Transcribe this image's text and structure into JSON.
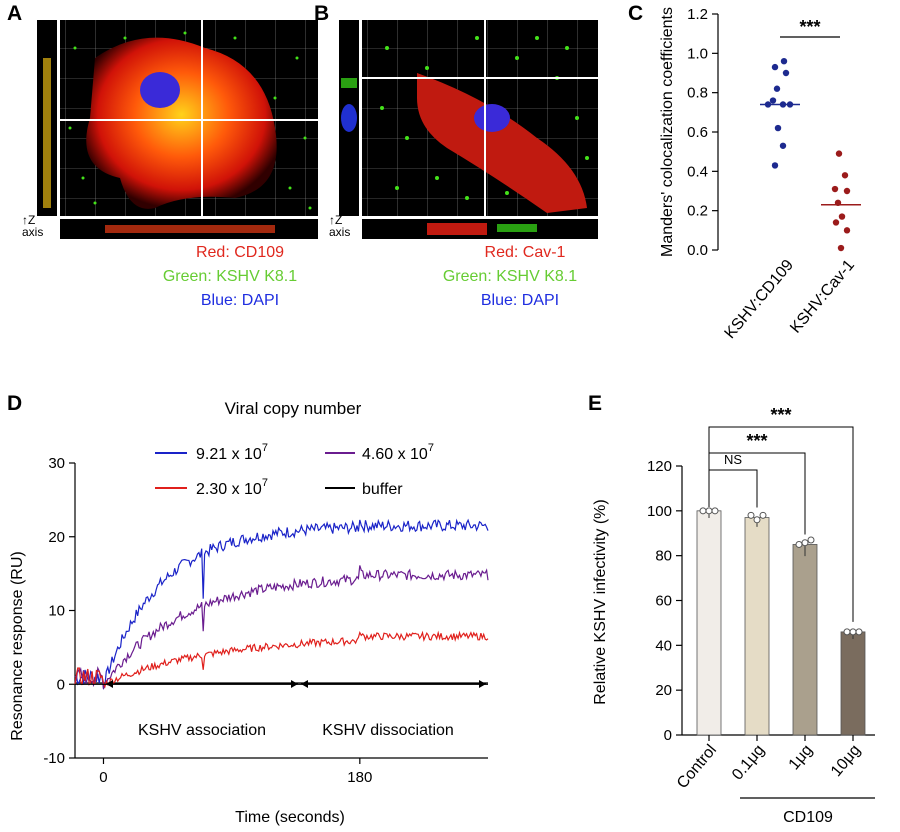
{
  "panels": {
    "A": {
      "letter": "A",
      "axis_symbol": "Z",
      "axis_word": "axis",
      "legend": [
        "Red: CD109",
        "Green: KSHV K8.1",
        "Blue: DAPI"
      ]
    },
    "B": {
      "letter": "B",
      "axis_symbol": "Z",
      "axis_word": "axis",
      "legend": [
        "Red: Cav-1",
        "Green: KSHV K8.1",
        "Blue: DAPI"
      ]
    },
    "C": {
      "letter": "C"
    },
    "D": {
      "letter": "D"
    },
    "E": {
      "letter": "E"
    }
  },
  "colors": {
    "red_text": "#e0281e",
    "green_text": "#66cc33",
    "blue_text": "#1f2ee0",
    "navy_dots": "#1d2a8f",
    "darkred_dots": "#9b1b1b",
    "series_blue": "#1a23c8",
    "series_purple": "#6a1c8f",
    "series_red": "#e0201c",
    "series_black": "#000000"
  },
  "chart_data": [
    {
      "id": "C",
      "type": "scatter",
      "ylabel": "Manders' colocalization coefficients",
      "ylim": [
        0,
        1.2
      ],
      "yticks": [
        "0.0",
        "0.2",
        "0.4",
        "0.6",
        "0.8",
        "1.0",
        "1.2"
      ],
      "categories": [
        "KSHV:CD109",
        "KSHV:Cav-1"
      ],
      "series": [
        {
          "name": "KSHV:CD109",
          "values": [
            0.96,
            0.93,
            0.9,
            0.82,
            0.76,
            0.74,
            0.74,
            0.74,
            0.62,
            0.53,
            0.43
          ],
          "median": 0.74
        },
        {
          "name": "KSHV:Cav-1",
          "values": [
            0.49,
            0.38,
            0.31,
            0.3,
            0.24,
            0.17,
            0.14,
            0.1,
            0.01
          ],
          "median": 0.23
        }
      ],
      "significance": "***"
    },
    {
      "id": "D",
      "type": "line",
      "title": "Viral copy number",
      "xlabel": "Time (seconds)",
      "ylabel": "Resonance response (RU)",
      "xlim": [
        -20,
        270
      ],
      "ylim": [
        -10,
        30
      ],
      "xticks": [
        "0",
        "180"
      ],
      "xtick_values": [
        0,
        180
      ],
      "yticks": [
        "-10",
        "0",
        "10",
        "20",
        "30"
      ],
      "ytick_values": [
        -10,
        0,
        10,
        20,
        30
      ],
      "legend": [
        {
          "base": "9.21 x 10",
          "exp": "7"
        },
        {
          "base": "4.60 x 10",
          "exp": "7"
        },
        {
          "base": "2.30 x 10",
          "exp": "7"
        },
        {
          "base": "buffer",
          "exp": ""
        }
      ],
      "series": [
        {
          "name": "9.21 x 10^7",
          "plateau": 21.5
        },
        {
          "name": "4.60 x 10^7",
          "plateau": 14.8
        },
        {
          "name": "2.30 x 10^7",
          "plateau": 6.5
        },
        {
          "name": "buffer",
          "plateau": 0
        }
      ],
      "annotations": {
        "association": "KSHV association",
        "dissociation": "KSHV dissociation"
      }
    },
    {
      "id": "E",
      "type": "bar",
      "ylabel": "Relative KSHV infectivity (%)",
      "ylim": [
        0,
        120
      ],
      "yticks": [
        "0",
        "20",
        "40",
        "60",
        "80",
        "100",
        "120"
      ],
      "categories": [
        "Control",
        "0.1μg",
        "1μg",
        "10μg"
      ],
      "values": [
        100,
        97,
        85,
        46
      ],
      "errors": [
        0.5,
        1.5,
        2.5,
        0.5
      ],
      "points": [
        [
          100,
          100,
          100
        ],
        [
          98,
          96,
          98
        ],
        [
          85,
          84,
          87
        ],
        [
          46,
          46,
          46
        ]
      ],
      "bar_colors": [
        "#f1ede8",
        "#e5dcc6",
        "#aaa08d",
        "#7a6c5e"
      ],
      "group_label": "CD109",
      "significance": [
        {
          "pair": [
            "Control",
            "0.1μg"
          ],
          "label": "NS"
        },
        {
          "pair": [
            "Control",
            "1μg"
          ],
          "label": "***"
        },
        {
          "pair": [
            "Control",
            "10μg"
          ],
          "label": "***"
        }
      ]
    }
  ]
}
